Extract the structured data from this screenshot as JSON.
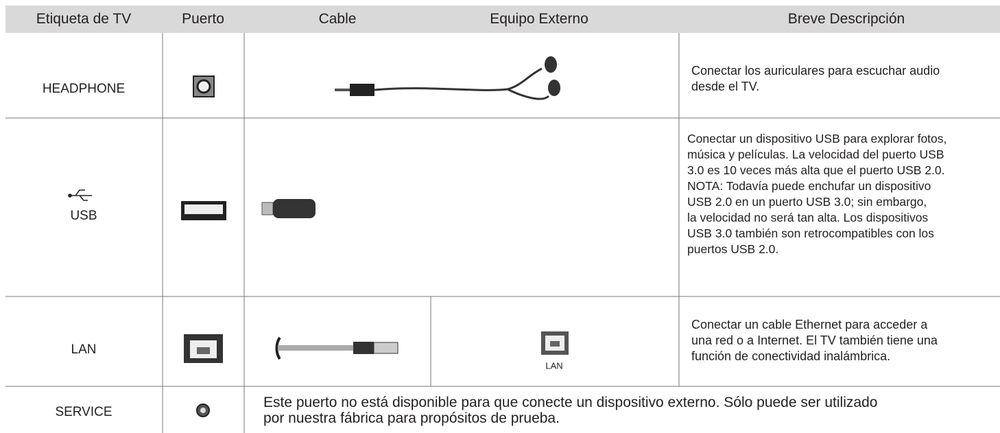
{
  "header": {
    "columns": [
      "Etiqueta de TV",
      "Puerto",
      "Cable",
      "Equipo Externo",
      "Breve Descripción"
    ]
  },
  "rows": [
    {
      "label": "HEADPHONE",
      "description": [
        "Conectar los auriculares para escuchar audio",
        "desde el TV."
      ]
    },
    {
      "label": "USB",
      "description": [
        "Conectar un dispositivo USB para explorar fotos,",
        "música y películas. La velocidad del puerto USB",
        "3.0 es 10 veces más alta que el puerto USB 2.0.",
        "NOTA: Todavía puede enchufar un dispositivo",
        "USB 2.0 en un puerto USB 3.0; sin embargo,",
        "la velocidad no será tan alta. Los dispositivos",
        "USB 3.0 también son retrocompatibles con los",
        "puertos USB 2.0."
      ]
    },
    {
      "label": "LAN",
      "equipment_label": "LAN",
      "description": [
        "Conectar un cable Ethernet para acceder a",
        "una red o a Internet. El TV también tiene una",
        "función de conectividad inalámbrica."
      ]
    },
    {
      "label": "SERVICE",
      "note": [
        "Este puerto no está disponible para que conecte un dispositivo externo. Sólo puede ser utilizado",
        "por nuestra fábrica para propósitos de prueba."
      ]
    }
  ]
}
